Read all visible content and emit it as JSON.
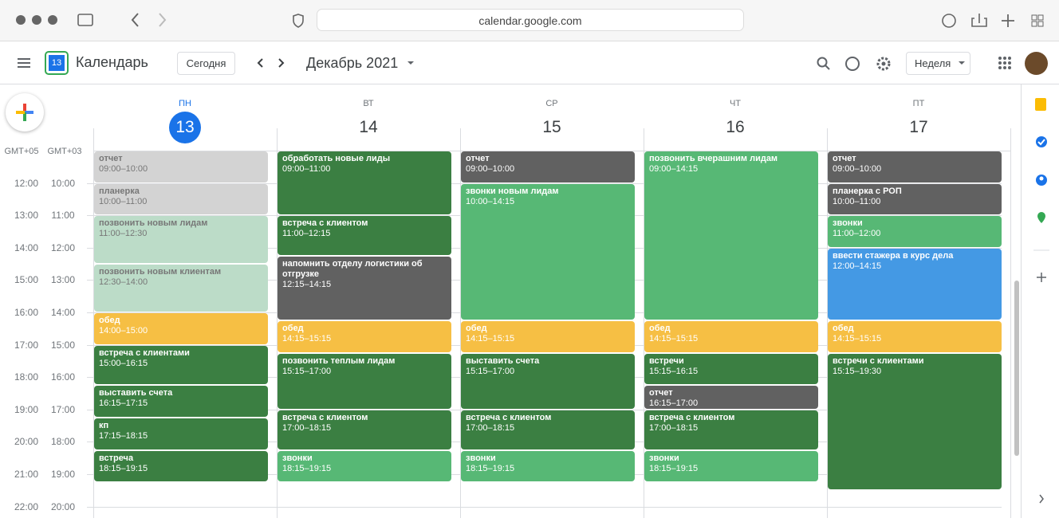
{
  "browser": {
    "url": "calendar.google.com"
  },
  "header": {
    "logo_day": "13",
    "app_name": "Календарь",
    "today_button": "Сегодня",
    "month": "Декабрь 2021",
    "view": "Неделя"
  },
  "timezones": [
    "GMT+05",
    "GMT+03"
  ],
  "time_rows": [
    {
      "tz1": "12:00",
      "tz2": "10:00"
    },
    {
      "tz1": "13:00",
      "tz2": "11:00"
    },
    {
      "tz1": "14:00",
      "tz2": "12:00"
    },
    {
      "tz1": "15:00",
      "tz2": "13:00"
    },
    {
      "tz1": "16:00",
      "tz2": "14:00"
    },
    {
      "tz1": "17:00",
      "tz2": "15:00"
    },
    {
      "tz1": "18:00",
      "tz2": "16:00"
    },
    {
      "tz1": "19:00",
      "tz2": "17:00"
    },
    {
      "tz1": "20:00",
      "tz2": "18:00"
    },
    {
      "tz1": "21:00",
      "tz2": "19:00"
    },
    {
      "tz1": "22:00",
      "tz2": "20:00"
    }
  ],
  "days": [
    {
      "weekday": "ПН",
      "date": "13",
      "today": true,
      "events": [
        {
          "title": "отчет",
          "time": "09:00–10:00",
          "color": "#d3d3d3",
          "text_color": "#777"
        },
        {
          "title": "планерка",
          "time": "10:00–11:00",
          "color": "#d3d3d3",
          "text_color": "#777"
        },
        {
          "title": "позвонить новым лидам",
          "time": "11:00–12:30",
          "color": "#bcdcc8",
          "text_color": "#777"
        },
        {
          "title": "позвонить новым клиентам",
          "time": "12:30–14:00",
          "color": "#bcdcc8",
          "text_color": "#777"
        },
        {
          "title": "обед",
          "time": "14:00–15:00",
          "color": "#f6bf44",
          "text_color": "#fff"
        },
        {
          "title": "встреча с клиентами",
          "time": "15:00–16:15",
          "color": "#3b7f42",
          "text_color": "#fff"
        },
        {
          "title": "выставить счета",
          "time": "16:15–17:15",
          "color": "#3b7f42",
          "text_color": "#fff"
        },
        {
          "title": "кп",
          "time": "17:15–18:15",
          "color": "#3b7f42",
          "text_color": "#fff"
        },
        {
          "title": "встреча",
          "time": "18:15–19:15",
          "color": "#3b7f42",
          "text_color": "#fff"
        }
      ]
    },
    {
      "weekday": "ВТ",
      "date": "14",
      "today": false,
      "events": [
        {
          "title": "обработать новые лиды",
          "time": "09:00–11:00",
          "color": "#3b7f42",
          "text_color": "#fff"
        },
        {
          "title": "встреча с клиентом",
          "time": "11:00–12:15",
          "color": "#3b7f42",
          "text_color": "#fff"
        },
        {
          "title": "напомнить отделу логистики об отгрузке",
          "time": "12:15–14:15",
          "color": "#616161",
          "text_color": "#fff"
        },
        {
          "title": "обед",
          "time": "14:15–15:15",
          "color": "#f6bf44",
          "text_color": "#fff"
        },
        {
          "title": "позвонить теплым лидам",
          "time": "15:15–17:00",
          "color": "#3b7f42",
          "text_color": "#fff"
        },
        {
          "title": "встреча с клиентом",
          "time": "17:00–18:15",
          "color": "#3b7f42",
          "text_color": "#fff"
        },
        {
          "title": "звонки",
          "time": "18:15–19:15",
          "color": "#57b875",
          "text_color": "#fff"
        }
      ]
    },
    {
      "weekday": "СР",
      "date": "15",
      "today": false,
      "events": [
        {
          "title": "отчет",
          "time": "09:00–10:00",
          "color": "#616161",
          "text_color": "#fff"
        },
        {
          "title": "звонки новым лидам",
          "time": "10:00–14:15",
          "color": "#57b875",
          "text_color": "#fff"
        },
        {
          "title": "обед",
          "time": "14:15–15:15",
          "color": "#f6bf44",
          "text_color": "#fff"
        },
        {
          "title": "выставить счета",
          "time": "15:15–17:00",
          "color": "#3b7f42",
          "text_color": "#fff"
        },
        {
          "title": "встреча с клиентом",
          "time": "17:00–18:15",
          "color": "#3b7f42",
          "text_color": "#fff"
        },
        {
          "title": "звонки",
          "time": "18:15–19:15",
          "color": "#57b875",
          "text_color": "#fff"
        }
      ]
    },
    {
      "weekday": "ЧТ",
      "date": "16",
      "today": false,
      "events": [
        {
          "title": "позвонить вчерашним лидам",
          "time": "09:00–14:15",
          "color": "#57b875",
          "text_color": "#fff"
        },
        {
          "title": "обед",
          "time": "14:15–15:15",
          "color": "#f6bf44",
          "text_color": "#fff"
        },
        {
          "title": "встречи",
          "time": "15:15–16:15",
          "color": "#3b7f42",
          "text_color": "#fff"
        },
        {
          "title": "отчет",
          "time": "16:15–17:00",
          "color": "#616161",
          "text_color": "#fff"
        },
        {
          "title": "встреча с клиентом",
          "time": "17:00–18:15",
          "color": "#3b7f42",
          "text_color": "#fff"
        },
        {
          "title": "звонки",
          "time": "18:15–19:15",
          "color": "#57b875",
          "text_color": "#fff"
        }
      ]
    },
    {
      "weekday": "ПТ",
      "date": "17",
      "today": false,
      "events": [
        {
          "title": "отчет",
          "time": "09:00–10:00",
          "color": "#616161",
          "text_color": "#fff"
        },
        {
          "title": "планерка с РОП",
          "time": "10:00–11:00",
          "color": "#616161",
          "text_color": "#fff"
        },
        {
          "title": "звонки",
          "time": "11:00–12:00",
          "color": "#57b875",
          "text_color": "#fff"
        },
        {
          "title": "ввести стажера в курс дела",
          "time": "12:00–14:15",
          "color": "#4499e4",
          "text_color": "#fff"
        },
        {
          "title": "обед",
          "time": "14:15–15:15",
          "color": "#f6bf44",
          "text_color": "#fff"
        },
        {
          "title": "встречи с клиентами",
          "time": "15:15–19:30",
          "color": "#3b7f42",
          "text_color": "#fff"
        }
      ]
    }
  ]
}
